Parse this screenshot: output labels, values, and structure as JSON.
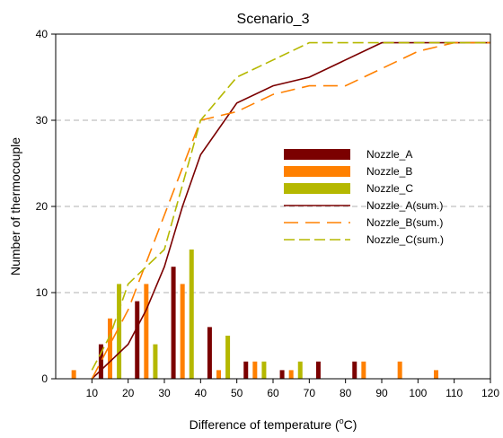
{
  "chart_data": {
    "type": "bar",
    "title": "Scenario_3",
    "xlabel_main": "Difference of temperature (",
    "xlabel_sup": "o",
    "xlabel_tail": "C)",
    "ylabel": "Number of thermocouple",
    "xlim": [
      0,
      120
    ],
    "ylim": [
      0,
      40
    ],
    "xticks": [
      10,
      20,
      30,
      40,
      50,
      60,
      70,
      80,
      90,
      100,
      110,
      120
    ],
    "yticks": [
      0,
      10,
      20,
      30,
      40
    ],
    "grid": "horizontal dashed",
    "legend_position": "center-right",
    "bar_series": [
      {
        "name": "Nozzle_A",
        "color": "#7b0000",
        "x": [
          12.5,
          22.5,
          32.5,
          42.5,
          52.5,
          62.5,
          72.5,
          82.5,
          92.5,
          102.5,
          112.5
        ],
        "values": [
          4,
          9,
          13,
          6,
          2,
          1,
          2,
          2,
          0,
          0,
          0
        ]
      },
      {
        "name": "Nozzle_B",
        "color": "#ff8000",
        "x": [
          5,
          15,
          25,
          35,
          45,
          55,
          65,
          75,
          85,
          95,
          105,
          115
        ],
        "values": [
          1,
          7,
          11,
          11,
          1,
          2,
          1,
          0,
          2,
          2,
          1,
          0
        ]
      },
      {
        "name": "Nozzle_C",
        "color": "#b5b800",
        "x": [
          17.5,
          27.5,
          37.5,
          47.5,
          57.5,
          67.5,
          77.5,
          87.5,
          97.5,
          107.5,
          117.5
        ],
        "values": [
          11,
          4,
          15,
          5,
          2,
          2,
          0,
          0,
          0,
          0,
          0
        ]
      }
    ],
    "line_series": [
      {
        "name": "Nozzle_A(sum.)",
        "color": "#7b0000",
        "dash": "solid",
        "points": [
          [
            10,
            0
          ],
          [
            15,
            2
          ],
          [
            20,
            4
          ],
          [
            25,
            8
          ],
          [
            30,
            13
          ],
          [
            35,
            20
          ],
          [
            40,
            26
          ],
          [
            50,
            32
          ],
          [
            60,
            34
          ],
          [
            70,
            35
          ],
          [
            90,
            39
          ],
          [
            120,
            39
          ]
        ]
      },
      {
        "name": "Nozzle_B(sum.)",
        "color": "#ff8000",
        "dash": "long",
        "points": [
          [
            10,
            0
          ],
          [
            15,
            4
          ],
          [
            20,
            8
          ],
          [
            30,
            19
          ],
          [
            40,
            30
          ],
          [
            45,
            30.5
          ],
          [
            50,
            31
          ],
          [
            60,
            33
          ],
          [
            70,
            34
          ],
          [
            80,
            34
          ],
          [
            100,
            38
          ],
          [
            110,
            39
          ],
          [
            120,
            39
          ]
        ]
      },
      {
        "name": "Nozzle_C(sum.)",
        "color": "#b5b800",
        "dash": "medium",
        "points": [
          [
            10,
            1
          ],
          [
            15,
            5
          ],
          [
            20,
            11
          ],
          [
            30,
            15
          ],
          [
            40,
            30
          ],
          [
            50,
            35
          ],
          [
            60,
            37
          ],
          [
            70,
            39
          ],
          [
            120,
            39
          ]
        ]
      }
    ]
  }
}
